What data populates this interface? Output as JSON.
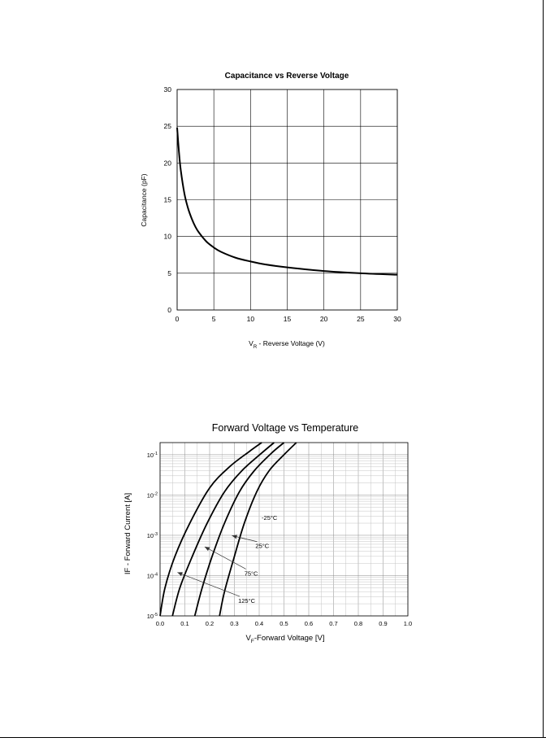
{
  "chart_data": [
    {
      "type": "line",
      "title": "Capacitance vs Reverse Voltage",
      "xlabel": "V_R - Reverse Voltage (V)",
      "xlabel_main": "V",
      "xlabel_sub": "R",
      "xlabel_rest": " - Reverse Voltage (V)",
      "ylabel": "Capacitance (pF)",
      "xlim": [
        0,
        30
      ],
      "ylim": [
        0,
        30
      ],
      "xticks": [
        "0",
        "5",
        "10",
        "15",
        "20",
        "25",
        "30"
      ],
      "yticks": [
        "0",
        "5",
        "10",
        "15",
        "20",
        "25",
        "30"
      ],
      "grid": true,
      "series": [
        {
          "x": [
            0,
            0.25,
            0.5,
            1,
            1.5,
            2,
            2.5,
            3,
            4,
            5,
            6,
            8,
            10,
            12,
            15,
            20,
            25,
            30
          ],
          "y": [
            24.8,
            21.5,
            19.0,
            15.8,
            13.8,
            12.4,
            11.3,
            10.5,
            9.3,
            8.5,
            7.9,
            7.1,
            6.6,
            6.2,
            5.8,
            5.3,
            5.0,
            4.8
          ]
        }
      ]
    },
    {
      "type": "line",
      "title": "Forward Voltage vs Temperature",
      "xlabel": "V_F-Forward Voltage [V]",
      "xlabel_main": "V",
      "xlabel_sub": "F",
      "xlabel_rest": "-Forward Voltage [V]",
      "ylabel": "IF - Forward Current [A]",
      "xlim": [
        0,
        1.0
      ],
      "ylim": [
        1e-05,
        0.2
      ],
      "yscale": "log",
      "xticks": [
        "0.0",
        "0.1",
        "0.2",
        "0.3",
        "0.4",
        "0.5",
        "0.6",
        "0.7",
        "0.8",
        "0.9",
        "1.0"
      ],
      "yticks": [
        {
          "base": "10",
          "exp": "-5",
          "value": 1e-05
        },
        {
          "base": "10",
          "exp": "-4",
          "value": 0.0001
        },
        {
          "base": "10",
          "exp": "-3",
          "value": 0.001
        },
        {
          "base": "10",
          "exp": "-2",
          "value": 0.01
        },
        {
          "base": "10",
          "exp": "-1",
          "value": 0.1
        }
      ],
      "grid": true,
      "series": [
        {
          "name": "125°C",
          "x": [
            0.0,
            0.02,
            0.06,
            0.12,
            0.2,
            0.28,
            0.36,
            0.41
          ],
          "y": [
            1e-05,
            5e-05,
            0.0003,
            0.002,
            0.015,
            0.05,
            0.12,
            0.2
          ]
        },
        {
          "name": "75°C",
          "x": [
            0.05,
            0.08,
            0.13,
            0.19,
            0.26,
            0.33,
            0.41,
            0.46
          ],
          "y": [
            1e-05,
            5e-05,
            0.0003,
            0.002,
            0.012,
            0.04,
            0.11,
            0.2
          ]
        },
        {
          "name": "25°C",
          "x": [
            0.14,
            0.17,
            0.21,
            0.26,
            0.32,
            0.38,
            0.45,
            0.5
          ],
          "y": [
            1e-05,
            5e-05,
            0.0003,
            0.002,
            0.012,
            0.04,
            0.11,
            0.2
          ]
        },
        {
          "name": "-25°C",
          "x": [
            0.24,
            0.26,
            0.3,
            0.34,
            0.39,
            0.44,
            0.5,
            0.55
          ],
          "y": [
            1e-05,
            4e-05,
            0.0003,
            0.002,
            0.012,
            0.04,
            0.1,
            0.2
          ]
        }
      ],
      "annotations": [
        {
          "text": "-25°C",
          "x": 0.41,
          "y": 0.0024
        },
        {
          "text": "25°C",
          "x": 0.385,
          "y": 0.00048,
          "arrow_to": [
            0.29,
            0.00098
          ]
        },
        {
          "text": "75°C",
          "x": 0.34,
          "y": 0.0001,
          "arrow_to": [
            0.18,
            0.00052
          ]
        },
        {
          "text": "125°C",
          "x": 0.315,
          "y": 2.1e-05,
          "arrow_to": [
            0.07,
            0.00012
          ]
        }
      ]
    }
  ]
}
